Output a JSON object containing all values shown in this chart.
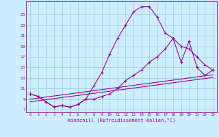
{
  "xlabel": "Windchill (Refroidissement éolien,°C)",
  "background_color": "#cceeff",
  "grid_color": "#99cccc",
  "line_color": "#990099",
  "xlim": [
    -0.5,
    23.5
  ],
  "ylim": [
    6.5,
    27.5
  ],
  "yticks": [
    7,
    9,
    11,
    13,
    15,
    17,
    19,
    21,
    23,
    25
  ],
  "xticks": [
    0,
    1,
    2,
    3,
    4,
    5,
    6,
    7,
    8,
    9,
    10,
    11,
    12,
    13,
    14,
    15,
    16,
    17,
    18,
    19,
    20,
    21,
    22,
    23
  ],
  "series_main": [
    10.0,
    9.5,
    8.5,
    7.5,
    7.8,
    7.5,
    8.0,
    9.0,
    11.5,
    14.0,
    17.5,
    20.5,
    23.0,
    25.5,
    26.5,
    26.5,
    24.5,
    21.5,
    20.5,
    19.0,
    18.5,
    17.0,
    15.5,
    14.5
  ],
  "series_diag1": [
    9.0,
    9.2,
    9.4,
    9.6,
    9.8,
    10.0,
    10.2,
    10.4,
    10.6,
    10.8,
    11.0,
    11.2,
    11.4,
    11.6,
    11.8,
    12.0,
    12.2,
    12.4,
    12.6,
    12.8,
    13.0,
    13.2,
    13.4,
    13.6
  ],
  "series_diag2": [
    8.5,
    8.7,
    8.9,
    9.1,
    9.3,
    9.5,
    9.7,
    9.9,
    10.1,
    10.3,
    10.5,
    10.7,
    10.9,
    11.1,
    11.3,
    11.5,
    11.7,
    11.9,
    12.1,
    12.3,
    12.5,
    12.7,
    12.9,
    13.1
  ],
  "series_zigzag": [
    10.0,
    9.5,
    8.5,
    7.5,
    7.8,
    7.5,
    8.0,
    9.0,
    9.0,
    9.5,
    10.0,
    11.0,
    12.5,
    13.5,
    14.5,
    16.0,
    17.0,
    18.5,
    20.5,
    16.0,
    20.0,
    15.0,
    13.5,
    14.5
  ]
}
